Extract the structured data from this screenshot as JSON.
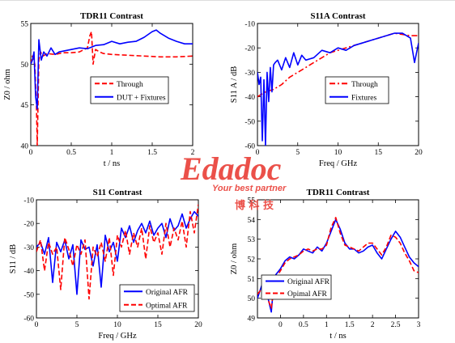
{
  "chart_data": [
    {
      "type": "line",
      "title": "TDR11 Contrast",
      "xlabel": "t / ns",
      "ylabel": "Z0 / ohm",
      "xlim": [
        0,
        2
      ],
      "ylim": [
        40,
        55
      ],
      "xticks": [
        "0",
        "0.5",
        "1",
        "1.5",
        "2"
      ],
      "yticks": [
        "40",
        "45",
        "50",
        "55"
      ],
      "legend_position": "bottom-right",
      "series": [
        {
          "name": "Through",
          "color": "#ff0000",
          "style": "dashed",
          "x": [
            0,
            0.02,
            0.05,
            0.07,
            0.08,
            0.1,
            0.12,
            0.15,
            0.2,
            0.3,
            0.4,
            0.5,
            0.6,
            0.7,
            0.73,
            0.75,
            0.77,
            0.8,
            0.85,
            0.9,
            1.0,
            1.2,
            1.4,
            1.6,
            1.8,
            2.0
          ],
          "y": [
            50,
            51,
            50,
            45,
            40,
            50.5,
            51.5,
            51,
            51.3,
            51.2,
            51.4,
            51.4,
            51.5,
            52,
            53.5,
            54,
            50,
            51.8,
            51.5,
            51.3,
            51.2,
            51.1,
            51,
            50.9,
            50.9,
            51
          ]
        },
        {
          "name": "DUT + Fixtures",
          "color": "#0000ff",
          "style": "solid",
          "x": [
            0,
            0.02,
            0.04,
            0.06,
            0.08,
            0.1,
            0.13,
            0.16,
            0.2,
            0.25,
            0.3,
            0.35,
            0.4,
            0.5,
            0.6,
            0.7,
            0.8,
            0.9,
            1.0,
            1.1,
            1.2,
            1.3,
            1.4,
            1.5,
            1.55,
            1.6,
            1.7,
            1.8,
            1.9,
            2.0
          ],
          "y": [
            50,
            50.5,
            51.5,
            46,
            44.5,
            53,
            50.5,
            51.5,
            51,
            52,
            51.2,
            51.5,
            51.6,
            51.8,
            52,
            51.9,
            52.3,
            52.4,
            52.8,
            52.5,
            52.7,
            52.8,
            53.3,
            54,
            54.2,
            53.8,
            53.2,
            52.8,
            52.5,
            52.5
          ]
        }
      ]
    },
    {
      "type": "line",
      "title": "S11A Contrast",
      "xlabel": "Freq / GHz",
      "ylabel": "S11 A / dB",
      "xlim": [
        0,
        20
      ],
      "ylim": [
        -60,
        -10
      ],
      "xticks": [
        "0",
        "5",
        "10",
        "15",
        "20"
      ],
      "yticks": [
        "-60",
        "-50",
        "-40",
        "-30",
        "-20",
        "-10"
      ],
      "legend_position": "middle-right",
      "series": [
        {
          "name": "Through",
          "color": "#ff0000",
          "style": "dashdot",
          "x": [
            0,
            1,
            2,
            3,
            4,
            5,
            6,
            7,
            8,
            9,
            10,
            11,
            12,
            13,
            14,
            15,
            16,
            17,
            18,
            19,
            20
          ],
          "y": [
            -40,
            -38,
            -37,
            -35,
            -32,
            -30,
            -28,
            -26,
            -24,
            -22,
            -21,
            -20,
            -19,
            -18,
            -17,
            -16,
            -15,
            -14,
            -14.5,
            -15,
            -15
          ]
        },
        {
          "name": "Fixtures",
          "color": "#0000ff",
          "style": "solid",
          "x": [
            0,
            0.2,
            0.4,
            0.6,
            0.8,
            1.0,
            1.2,
            1.4,
            1.6,
            1.8,
            2.0,
            2.2,
            2.5,
            3.0,
            3.5,
            4.0,
            4.5,
            5.0,
            5.5,
            6.0,
            7.0,
            8.0,
            9.0,
            10.0,
            11.0,
            12.0,
            13.0,
            14.0,
            15.0,
            16.0,
            17.0,
            18.0,
            19.0,
            19.5,
            20.0
          ],
          "y": [
            -30,
            -35,
            -32,
            -58,
            -33,
            -60,
            -30,
            -42,
            -28,
            -38,
            -27,
            -26,
            -25,
            -29,
            -24,
            -28,
            -22,
            -27,
            -23,
            -25,
            -24,
            -21,
            -22,
            -20,
            -21,
            -19,
            -18,
            -17,
            -16,
            -15,
            -14,
            -14,
            -16,
            -26,
            -18
          ]
        }
      ]
    },
    {
      "type": "line",
      "title": "S11 Contrast",
      "xlabel": "Freq / GHz",
      "ylabel": "S11 / dB",
      "xlim": [
        0,
        20
      ],
      "ylim": [
        -60,
        -10
      ],
      "xticks": [
        "0",
        "5",
        "10",
        "15",
        "20"
      ],
      "yticks": [
        "-60",
        "-50",
        "-40",
        "-30",
        "-20",
        "-10"
      ],
      "legend_position": "bottom-right",
      "series": [
        {
          "name": "Original AFR",
          "color": "#0000ff",
          "style": "solid",
          "x": [
            0,
            0.5,
            1,
            1.5,
            2,
            2.5,
            3,
            3.5,
            4,
            4.5,
            5,
            5.5,
            6,
            6.5,
            7,
            7.5,
            8,
            8.5,
            9,
            9.5,
            10,
            10.5,
            11,
            11.5,
            12,
            12.5,
            13,
            13.5,
            14,
            14.5,
            15,
            15.5,
            16,
            16.5,
            17,
            17.5,
            18,
            18.5,
            19,
            19.5,
            20
          ],
          "y": [
            -30,
            -28,
            -33,
            -26,
            -45,
            -28,
            -32,
            -27,
            -35,
            -29,
            -50,
            -27,
            -31,
            -30,
            -38,
            -29,
            -47,
            -25,
            -32,
            -28,
            -36,
            -22,
            -26,
            -21,
            -28,
            -23,
            -20,
            -24,
            -19,
            -25,
            -22,
            -20,
            -26,
            -18,
            -23,
            -21,
            -16,
            -22,
            -18,
            -15,
            -17
          ]
        },
        {
          "name": "Optimal AFR",
          "color": "#ff0000",
          "style": "dashed",
          "x": [
            0,
            0.5,
            1,
            1.5,
            2,
            2.5,
            3,
            3.5,
            4,
            4.5,
            5,
            5.5,
            6,
            6.5,
            7,
            7.5,
            8,
            8.5,
            9,
            9.5,
            10,
            10.5,
            11,
            11.5,
            12,
            12.5,
            13,
            13.5,
            14,
            14.5,
            15,
            15.5,
            16,
            16.5,
            17,
            17.5,
            18,
            18.5,
            19,
            19.5,
            20
          ],
          "y": [
            -32,
            -27,
            -40,
            -28,
            -33,
            -30,
            -48,
            -26,
            -31,
            -38,
            -29,
            -33,
            -27,
            -52,
            -30,
            -34,
            -28,
            -36,
            -26,
            -42,
            -25,
            -30,
            -23,
            -33,
            -24,
            -30,
            -22,
            -35,
            -21,
            -28,
            -24,
            -33,
            -20,
            -30,
            -22,
            -27,
            -19,
            -30,
            -15,
            -24,
            -12
          ]
        }
      ]
    },
    {
      "type": "line",
      "title": "TDR11 Contrast",
      "xlabel": "t / ns",
      "ylabel": "Z0 / ohm",
      "xlim": [
        -0.5,
        3
      ],
      "ylim": [
        49,
        55
      ],
      "xticks": [
        "0",
        "0.5",
        "1",
        "1.5",
        "2",
        "2.5",
        "3"
      ],
      "yticks": [
        "49",
        "50",
        "51",
        "52",
        "53",
        "54",
        "55"
      ],
      "legend_position": "bottom-left",
      "series": [
        {
          "name": "Original AFR",
          "color": "#0000ff",
          "style": "solid",
          "x": [
            -0.5,
            -0.4,
            -0.3,
            -0.2,
            -0.15,
            -0.1,
            0,
            0.1,
            0.2,
            0.3,
            0.4,
            0.5,
            0.6,
            0.7,
            0.8,
            0.9,
            1.0,
            1.1,
            1.2,
            1.3,
            1.4,
            1.5,
            1.6,
            1.7,
            1.8,
            1.9,
            2.0,
            2.1,
            2.2,
            2.3,
            2.4,
            2.5,
            2.6,
            2.7,
            2.8,
            2.9,
            3.0
          ],
          "y": [
            50,
            50.7,
            50.3,
            49.3,
            50.6,
            51.2,
            51.5,
            51.9,
            52.1,
            52,
            52.2,
            52.5,
            52.4,
            52.3,
            52.6,
            52.4,
            52.8,
            53.4,
            54,
            53.5,
            52.8,
            52.5,
            52.5,
            52.3,
            52.4,
            52.6,
            52.7,
            52.3,
            52,
            52.5,
            53,
            53.4,
            53.1,
            52.6,
            52.1,
            51.8,
            51.6
          ]
        },
        {
          "name": "Opimal AFR",
          "color": "#ff0000",
          "style": "dashed",
          "x": [
            -0.5,
            -0.4,
            -0.3,
            -0.2,
            -0.15,
            -0.1,
            0,
            0.1,
            0.2,
            0.3,
            0.4,
            0.5,
            0.6,
            0.7,
            0.8,
            0.9,
            1.0,
            1.1,
            1.2,
            1.3,
            1.4,
            1.5,
            1.6,
            1.7,
            1.8,
            1.9,
            2.0,
            2.1,
            2.2,
            2.3,
            2.4,
            2.5,
            2.6,
            2.7,
            2.8,
            2.9,
            3.0
          ],
          "y": [
            50.2,
            50.5,
            50.1,
            49.5,
            50.4,
            51,
            51.4,
            51.8,
            52,
            52.1,
            52.2,
            52.4,
            52.5,
            52.4,
            52.5,
            52.5,
            52.7,
            53.6,
            54.1,
            53.3,
            52.7,
            52.6,
            52.5,
            52.4,
            52.6,
            52.8,
            52.8,
            52.5,
            52.2,
            52.6,
            53.2,
            53.1,
            52.8,
            52.3,
            51.9,
            51.4,
            51.3
          ]
        }
      ]
    }
  ],
  "watermark": {
    "brand": "Edadoc",
    "tagline": "Your best partner",
    "cn": "博 科 技",
    "color": "#e8322a"
  }
}
